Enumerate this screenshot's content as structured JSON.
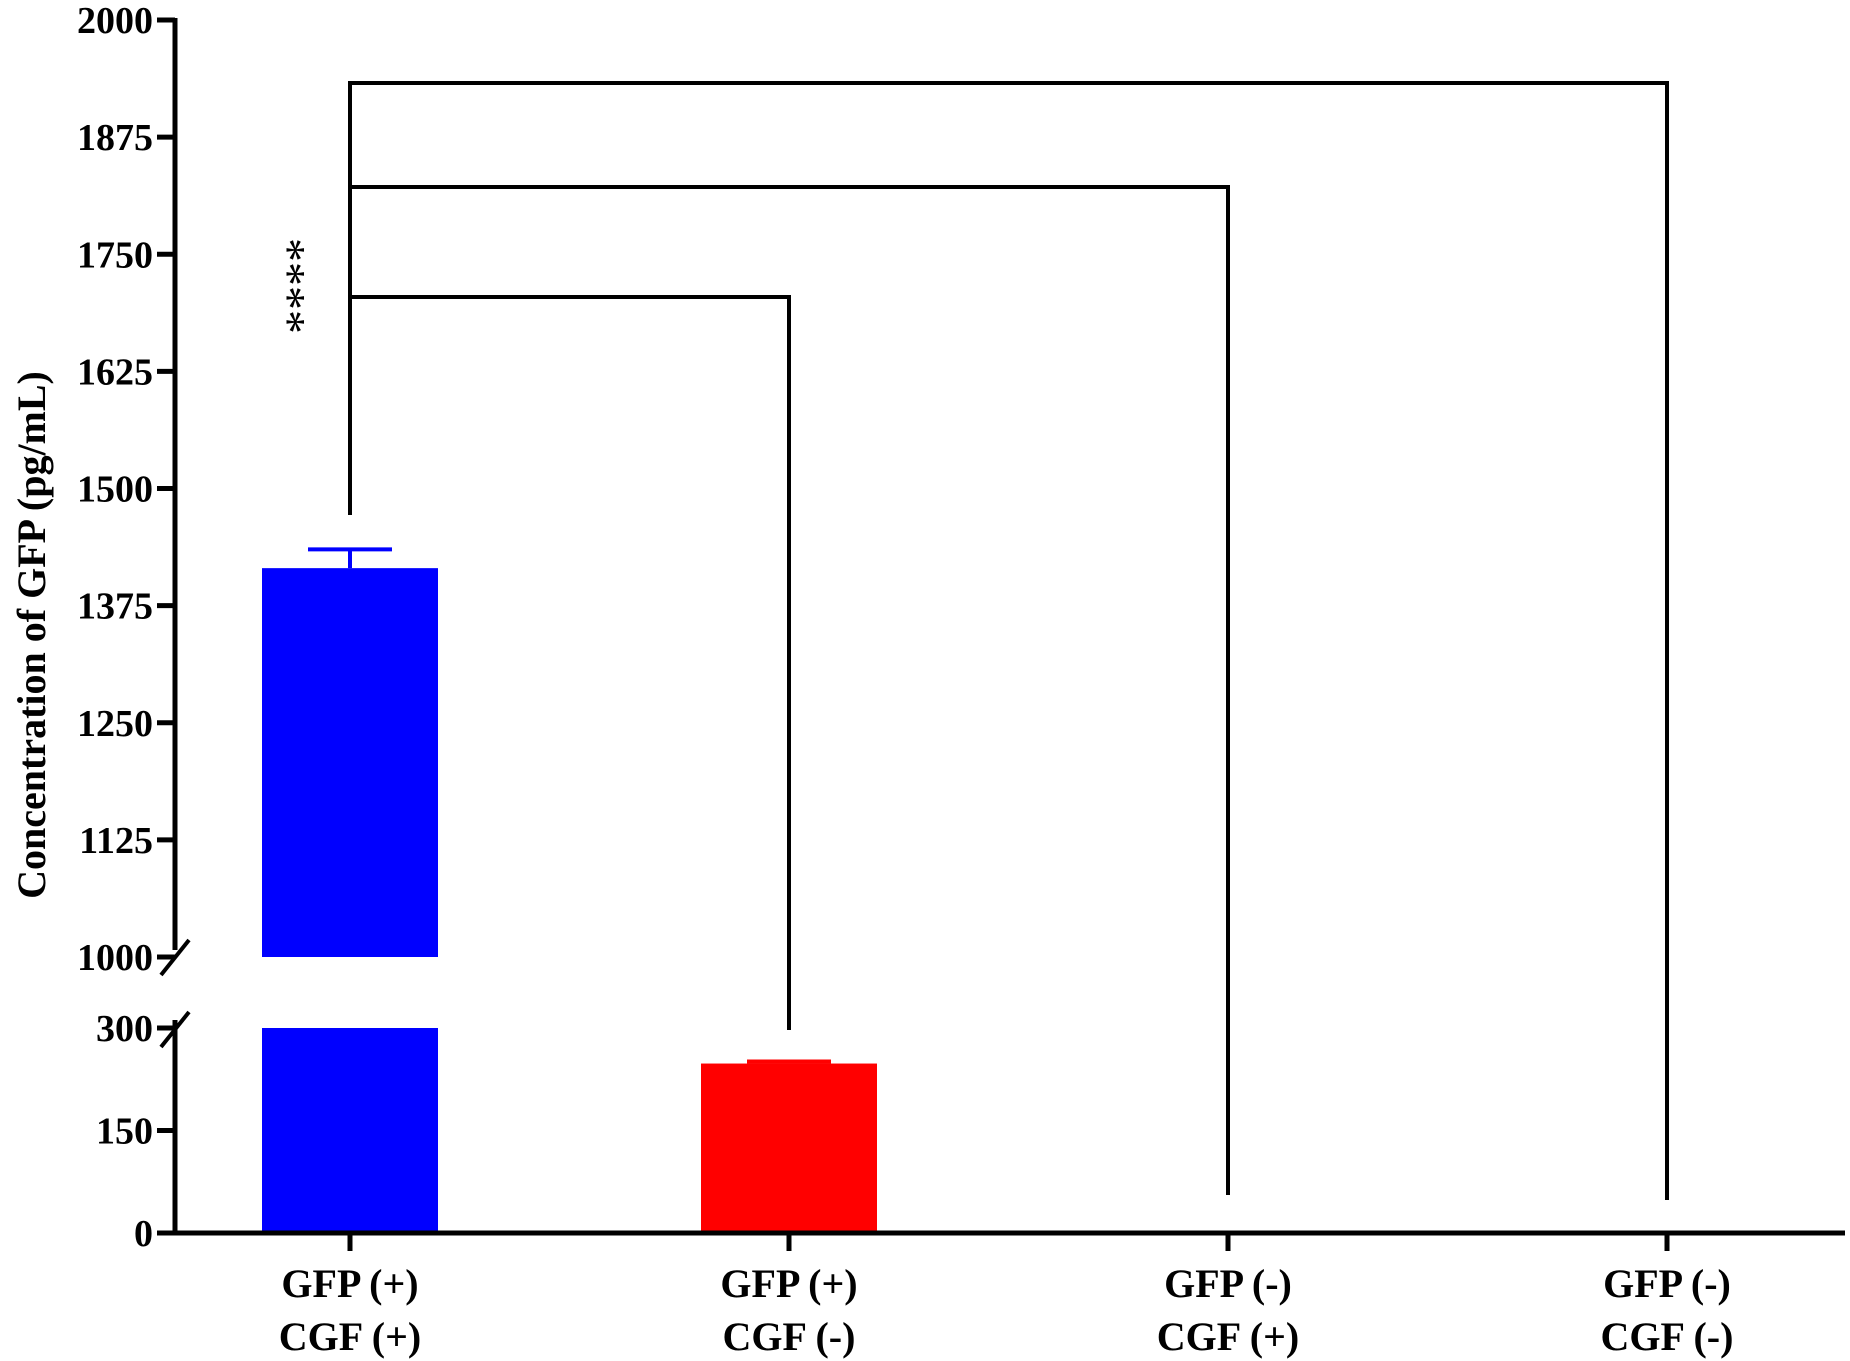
{
  "chart_data": {
    "type": "bar",
    "ylabel": "Concentration of GFP (pg/mL)",
    "axis_break": {
      "lower": 300,
      "upper": 1000
    },
    "lower_ticks": [
      "0",
      "150",
      "300"
    ],
    "upper_ticks": [
      "1000",
      "1125",
      "1250",
      "1375",
      "1500",
      "1625",
      "1750",
      "1875",
      "2000"
    ],
    "lower_tick_values": [
      0,
      150,
      300
    ],
    "upper_tick_values": [
      1000,
      1125,
      1250,
      1375,
      1500,
      1625,
      1750,
      1875,
      2000
    ],
    "categories": [
      {
        "line1": "GFP (+)",
        "line2": "CGF (+)"
      },
      {
        "line1": "GFP (+)",
        "line2": "CGF (-)"
      },
      {
        "line1": "GFP (-)",
        "line2": "CGF (+)"
      },
      {
        "line1": "GFP (-)",
        "line2": "CGF (-)"
      }
    ],
    "values": [
      1415,
      248,
      0,
      0
    ],
    "errors": [
      20,
      3,
      0,
      0
    ],
    "bar_colors": [
      "#0000ff",
      "#ff0000",
      "#0000ff",
      "#0000ff"
    ],
    "comparisons": [
      {
        "from": 0,
        "to": 1,
        "label": "****"
      },
      {
        "from": 0,
        "to": 2,
        "label": ""
      },
      {
        "from": 0,
        "to": 3,
        "label": ""
      }
    ]
  }
}
